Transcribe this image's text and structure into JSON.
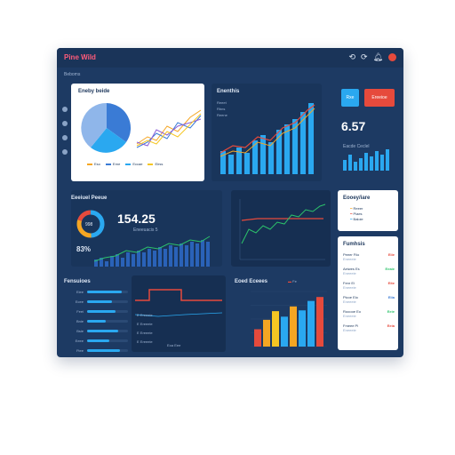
{
  "app": {
    "logo": "Pine Wild",
    "crumb": "Beboms",
    "top_icons": [
      "undo-icon",
      "redo-icon",
      "bell-icon"
    ]
  },
  "sidebar": {
    "items": [
      "home-icon",
      "chart-icon",
      "users-icon",
      "settings-icon"
    ]
  },
  "panel_main": {
    "title": "Eneby beide",
    "legend": [
      {
        "label": "Eso",
        "color": "#f5a623"
      },
      {
        "label": "Erne",
        "color": "#3a7bd5"
      },
      {
        "label": "Eccae",
        "color": "#2aa8f0"
      },
      {
        "label": "Eirss",
        "color": "#f5c623"
      }
    ]
  },
  "panel_bars": {
    "title": "Enenthis",
    "legend": [
      "Reeet",
      "Rbns",
      "Reene"
    ]
  },
  "kpi": {
    "btn_blue": "Rxe",
    "btn_red": "Ereeioe",
    "value": "6.57",
    "sub": "Eacde Ceclel"
  },
  "panel_donut": {
    "title": "Eeeiuel Peeue",
    "donut_label": "998",
    "value": "154.25",
    "sub": "Eneeuacis 5",
    "stat": "83%"
  },
  "panel_line": {
    "title": ""
  },
  "panel_legend_card": {
    "title": "Eooey/iare",
    "rows": [
      "Reeer",
      "Piaes",
      "Baloie"
    ]
  },
  "panel_list": {
    "title": "Fumhsis",
    "rows": [
      {
        "a": "Peeer Fiio",
        "b": "Eneeeie",
        "tag": "Eiie",
        "color": "#e64a3c"
      },
      {
        "a": "Aeiwes Es",
        "b": "Eneeeie",
        "tag": "Eeaie",
        "color": "#2cc36b"
      },
      {
        "a": "Fenr Ei",
        "b": "Eneeeie",
        "tag": "Eite",
        "color": "#e64a3c"
      },
      {
        "a": "Picoe Eio",
        "b": "Eneeeie",
        "tag": "Eiia",
        "color": "#3a7bd5"
      },
      {
        "a": "Rooooe Eo",
        "b": "Eneeeie",
        "tag": "Eeie",
        "color": "#2cc36b"
      },
      {
        "a": "Fmeee Pi",
        "b": "Eneeeie",
        "tag": "Eeia",
        "color": "#e64a3c"
      }
    ]
  },
  "panel_hbars": {
    "title": "Fensuioes",
    "rows": [
      {
        "label": "Eiee",
        "value": 0.85
      },
      {
        "label": "Ecee",
        "value": 0.6
      },
      {
        "label": "Feei",
        "value": 0.7
      },
      {
        "label": "Bnie",
        "value": 0.45
      },
      {
        "label": "Bsie",
        "value": 0.75
      },
      {
        "label": "Eeee",
        "value": 0.55
      },
      {
        "label": "Ftee",
        "value": 0.8
      }
    ]
  },
  "panel_step": {
    "rows": [
      "E  Ereeeie",
      "E  Ereeeie",
      "E  Ereeeie",
      "E  Ereeeie"
    ],
    "footer": "Eoa Eee"
  },
  "panel_colbars": {
    "title": "Eoed Eceees",
    "legend": "Fe",
    "values": [
      22,
      34,
      45,
      38,
      51,
      46,
      58,
      63
    ],
    "colors": [
      "#e64a3c",
      "#f5a623",
      "#f5c623",
      "#2aa8f0",
      "#f5a623",
      "#2aa8f0",
      "#2aa8f0",
      "#e64a3c"
    ]
  },
  "colors": {
    "bg": "#1d3a63",
    "accent_blue": "#2aa8f0",
    "accent_red": "#e64a3c",
    "accent_green": "#2cc36b",
    "accent_orange": "#f5a623"
  }
}
